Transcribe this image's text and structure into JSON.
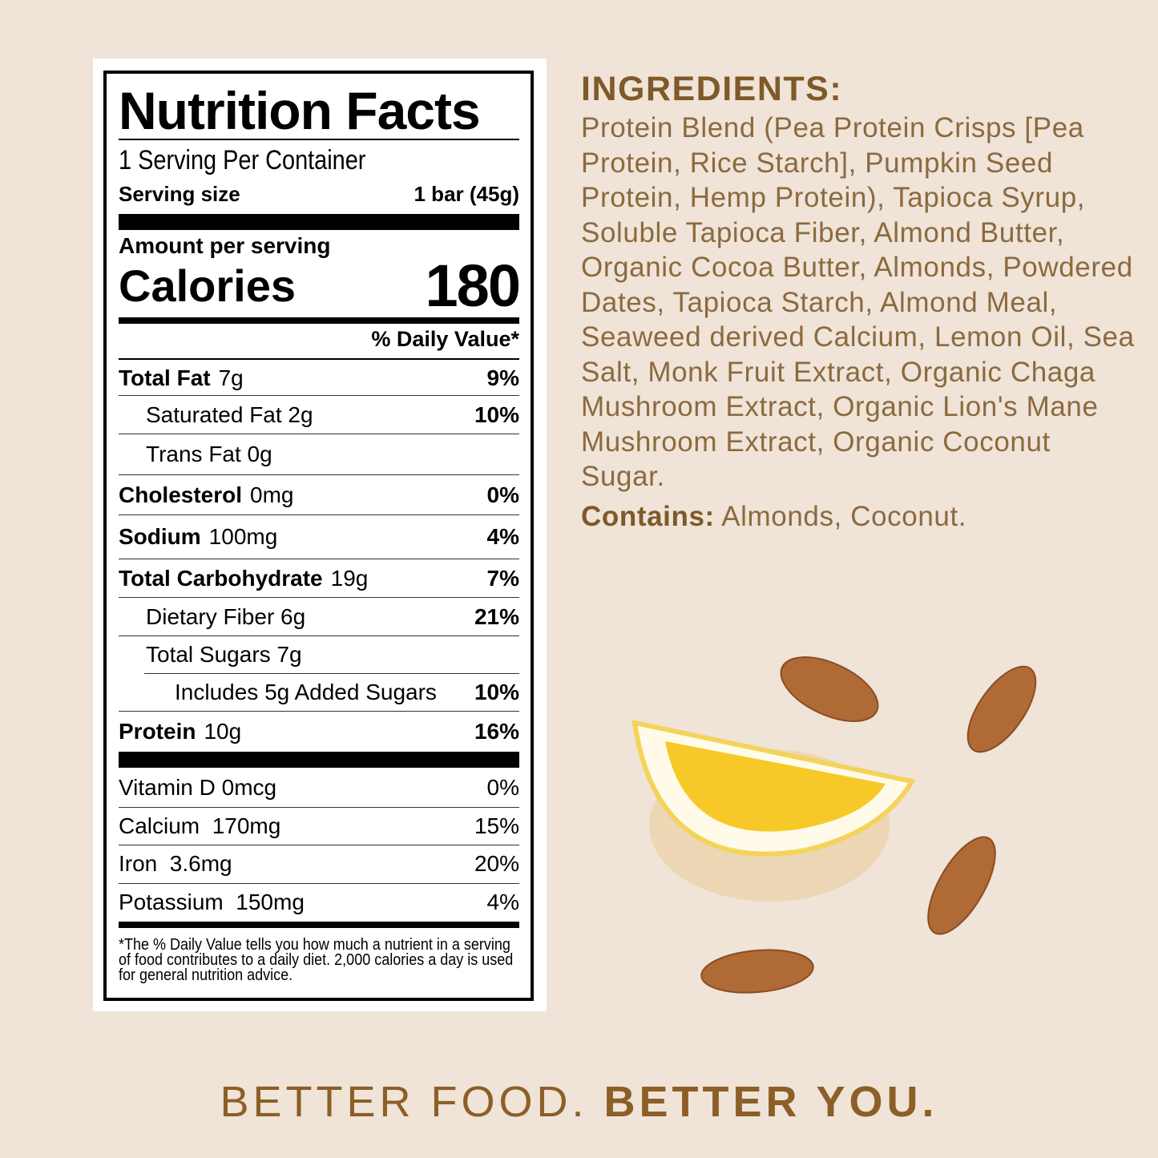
{
  "label": {
    "title": "Nutrition Facts",
    "servings": "1 Serving Per Container",
    "serving_size_label": "Serving size",
    "serving_size_value": "1 bar (45g)",
    "amount_per_serving": "Amount per serving",
    "calories_label": "Calories",
    "calories_value": "180",
    "dv_header": "% Daily Value*",
    "nutrients": [
      {
        "name": "Total Fat",
        "amount": "7g",
        "dv": "9%"
      },
      {
        "name": "Saturated Fat 2g",
        "amount": "",
        "dv": "10%"
      },
      {
        "name": "Trans Fat 0g",
        "amount": "",
        "dv": ""
      },
      {
        "name": "Cholesterol",
        "amount": "0mg",
        "dv": "0%"
      },
      {
        "name": "Sodium",
        "amount": "100mg",
        "dv": "4%"
      },
      {
        "name": "Total Carbohydrate",
        "amount": "19g",
        "dv": "7%"
      },
      {
        "name": "Dietary Fiber 6g",
        "amount": "",
        "dv": "21%"
      },
      {
        "name": "Total Sugars 7g",
        "amount": "",
        "dv": ""
      },
      {
        "name": "Includes 5g Added Sugars",
        "amount": "",
        "dv": "10%"
      },
      {
        "name": "Protein",
        "amount": "10g",
        "dv": "16%"
      }
    ],
    "vitamins": [
      {
        "name": "Vitamin D 0mcg",
        "dv": "0%"
      },
      {
        "name": "Calcium  170mg",
        "dv": "15%"
      },
      {
        "name": "Iron  3.6mg",
        "dv": "20%"
      },
      {
        "name": "Potassium  150mg",
        "dv": "4%"
      }
    ],
    "footnote": "*The % Daily Value tells you how much a nutrient in a serving of food contributes to a daily diet. 2,000 calories a day is used for general nutrition advice."
  },
  "ingredients": {
    "heading": "INGREDIENTS:",
    "text": "Protein Blend (Pea Protein Crisps [Pea Protein, Rice Starch], Pumpkin Seed Protein, Hemp Protein), Tapioca Syrup, Soluble Tapioca Fiber, Almond Butter, Organic Cocoa Butter, Almonds, Powdered Dates, Tapioca Starch, Almond Meal, Seaweed derived Calcium, Lemon Oil, Sea Salt, Monk Fruit Extract, Organic Chaga Mushroom Extract, Organic Lion's Mane Mushroom Extract, Organic Coconut Sugar.",
    "contains_label": "Contains:",
    "contains_text": "Almonds, Coconut."
  },
  "tagline": {
    "part1": "BETTER FOOD.",
    "part2": "BETTER YOU."
  },
  "colors": {
    "background": "#f0e3d8",
    "brand_brown": "#8b6a3e"
  }
}
